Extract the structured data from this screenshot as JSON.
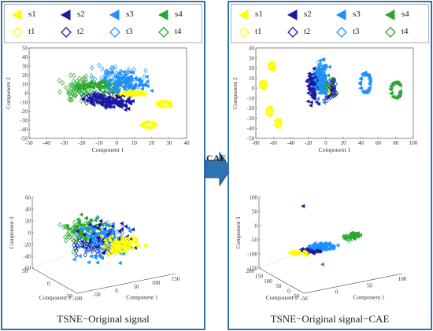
{
  "arrow_label": "CAE",
  "colors": {
    "s1": "#ffff00",
    "s2": "#1a1aa0",
    "s3": "#1e90ff",
    "s4": "#2aa830",
    "t1": "#ffff00",
    "t2": "#1a1aa0",
    "t3": "#1e90ff",
    "t4": "#2aa830",
    "frame": "#2e74b5"
  },
  "legend": {
    "markers_filled": [
      "triangle-left",
      "triangle-left",
      "triangle-left",
      "triangle-left"
    ],
    "markers_hollow": [
      "diamond",
      "diamond",
      "diamond",
      "diamond"
    ],
    "entries": [
      "s1",
      "s2",
      "s3",
      "s4",
      "t1",
      "t2",
      "t3",
      "t4"
    ]
  },
  "left": {
    "caption": "TSNE−Original signal",
    "legend": [
      "s1",
      "s2",
      "s3",
      "s4",
      "t1",
      "t2",
      "t3",
      "t4"
    ]
  },
  "right": {
    "caption": "TSNE−Original signal−CAE",
    "legend": [
      "s1",
      "s2",
      "s3",
      "s4",
      "t1",
      "t2",
      "t3",
      "t4"
    ]
  },
  "chart_data": [
    {
      "type": "scatter",
      "panel": "left-2d",
      "xlabel": "Component 1",
      "ylabel": "Component 2",
      "xlim": [
        -50,
        40
      ],
      "ylim": [
        -50,
        50
      ],
      "xticks": [
        "-50",
        "-40",
        "-30",
        "-20",
        "-10",
        "0",
        "10",
        "20",
        "30",
        "40"
      ],
      "yticks": [
        "-50",
        "-40",
        "-30",
        "-20",
        "-10",
        "0",
        "10",
        "20",
        "30",
        "40",
        "50"
      ],
      "series": [
        {
          "name": "s1",
          "clusters": [
            {
              "cx": 10,
              "cy": 0,
              "rx": 10,
              "ry": 4,
              "n": 60
            },
            {
              "cx": 27,
              "cy": -12,
              "rx": 4,
              "ry": 3,
              "n": 30,
              "ring": true
            },
            {
              "cx": 18,
              "cy": -35,
              "rx": 4,
              "ry": 3,
              "n": 30,
              "ring": true
            }
          ]
        },
        {
          "name": "s2",
          "clusters": [
            {
              "cx": -3,
              "cy": -10,
              "rx": 20,
              "ry": 10,
              "n": 90
            }
          ]
        },
        {
          "name": "s3",
          "clusters": [
            {
              "cx": 5,
              "cy": 10,
              "rx": 18,
              "ry": 18,
              "n": 90
            }
          ]
        },
        {
          "name": "s4",
          "clusters": [
            {
              "cx": -8,
              "cy": 8,
              "rx": 16,
              "ry": 10,
              "n": 70
            }
          ]
        },
        {
          "name": "t1",
          "clusters": [
            {
              "cx": 2,
              "cy": -2,
              "rx": 6,
              "ry": 4,
              "n": 20
            }
          ]
        },
        {
          "name": "t2",
          "clusters": [
            {
              "cx": -10,
              "cy": -5,
              "rx": 12,
              "ry": 10,
              "n": 60
            }
          ]
        },
        {
          "name": "t3",
          "clusters": [
            {
              "cx": 0,
              "cy": 18,
              "rx": 22,
              "ry": 16,
              "n": 70
            }
          ]
        },
        {
          "name": "t4",
          "clusters": [
            {
              "cx": -22,
              "cy": 5,
              "rx": 14,
              "ry": 20,
              "n": 80
            }
          ]
        }
      ]
    },
    {
      "type": "scatter",
      "panel": "left-3d",
      "xlabel": "Component 1",
      "ylabel": "Component 2",
      "zlabel": "Component 3",
      "zlim": [
        -60,
        60
      ],
      "zticks": [
        "-60",
        "-40",
        "-20",
        "0",
        "20",
        "40",
        "60"
      ],
      "yticks": [
        "-50",
        "0",
        "50"
      ],
      "xticks": [
        "-100",
        "-50",
        "0",
        "50",
        "100",
        "150"
      ],
      "series": [
        {
          "name": "s1",
          "clusters": [
            {
              "u": 0.62,
              "v": 0.52,
              "ru": 0.2,
              "rv": 0.12,
              "n": 80
            }
          ]
        },
        {
          "name": "s2",
          "clusters": [
            {
              "u": 0.5,
              "v": 0.45,
              "ru": 0.25,
              "rv": 0.3,
              "n": 80
            }
          ]
        },
        {
          "name": "s3",
          "clusters": [
            {
              "u": 0.5,
              "v": 0.5,
              "ru": 0.28,
              "rv": 0.32,
              "n": 90
            }
          ]
        },
        {
          "name": "s4",
          "clusters": [
            {
              "u": 0.35,
              "v": 0.35,
              "ru": 0.2,
              "rv": 0.2,
              "n": 60
            }
          ]
        },
        {
          "name": "t1",
          "clusters": [
            {
              "u": 0.55,
              "v": 0.6,
              "ru": 0.12,
              "rv": 0.08,
              "n": 20
            }
          ]
        },
        {
          "name": "t2",
          "clusters": [
            {
              "u": 0.4,
              "v": 0.55,
              "ru": 0.2,
              "rv": 0.2,
              "n": 40
            }
          ]
        },
        {
          "name": "t3",
          "clusters": [
            {
              "u": 0.45,
              "v": 0.45,
              "ru": 0.25,
              "rv": 0.28,
              "n": 40
            }
          ]
        },
        {
          "name": "t4",
          "clusters": [
            {
              "u": 0.28,
              "v": 0.4,
              "ru": 0.15,
              "rv": 0.25,
              "n": 50
            }
          ]
        }
      ]
    },
    {
      "type": "scatter",
      "panel": "right-2d",
      "xlabel": "Component 1",
      "ylabel": "Component 2",
      "xlim": [
        -80,
        100
      ],
      "ylim": [
        -50,
        40
      ],
      "xticks": [
        "-80",
        "-60",
        "-40",
        "-20",
        "0",
        "20",
        "40",
        "60",
        "80",
        "100"
      ],
      "yticks": [
        "-50",
        "-40",
        "-30",
        "-20",
        "-10",
        "0",
        "10",
        "20",
        "30",
        "40"
      ],
      "series": [
        {
          "name": "s1",
          "clusters": [
            {
              "cx": -62,
              "cy": 22,
              "rx": 3,
              "ry": 4,
              "n": 20,
              "ring": true
            },
            {
              "cx": -72,
              "cy": 3,
              "rx": 3,
              "ry": 4,
              "n": 20,
              "ring": true
            },
            {
              "cx": -65,
              "cy": -23,
              "rx": 3,
              "ry": 4,
              "n": 20,
              "ring": true
            },
            {
              "cx": -55,
              "cy": -35,
              "rx": 3,
              "ry": 4,
              "n": 20,
              "ring": true
            }
          ]
        },
        {
          "name": "s2",
          "clusters": [
            {
              "cx": -15,
              "cy": 0,
              "rx": 10,
              "ry": 22,
              "n": 80
            }
          ]
        },
        {
          "name": "s3",
          "clusters": [
            {
              "cx": -5,
              "cy": 8,
              "rx": 12,
              "ry": 25,
              "n": 80
            },
            {
              "cx": 45,
              "cy": 5,
              "rx": 6,
              "ry": 10,
              "n": 40,
              "ring": true
            }
          ]
        },
        {
          "name": "s4",
          "clusters": [
            {
              "cx": -3,
              "cy": 3,
              "rx": 6,
              "ry": 15,
              "n": 60
            },
            {
              "cx": 80,
              "cy": -2,
              "rx": 6,
              "ry": 8,
              "n": 35,
              "ring": true
            }
          ]
        },
        {
          "name": "t1",
          "clusters": [
            {
              "cx": 2,
              "cy": -2,
              "rx": 3,
              "ry": 5,
              "n": 10
            }
          ]
        },
        {
          "name": "t2",
          "clusters": [
            {
              "cx": 5,
              "cy": 2,
              "rx": 8,
              "ry": 18,
              "n": 50
            }
          ]
        },
        {
          "name": "t3",
          "clusters": [
            {
              "cx": -8,
              "cy": 15,
              "rx": 10,
              "ry": 15,
              "n": 40
            }
          ]
        },
        {
          "name": "t4",
          "clusters": [
            {
              "cx": 8,
              "cy": 0,
              "rx": 6,
              "ry": 12,
              "n": 30
            }
          ]
        }
      ]
    },
    {
      "type": "scatter",
      "panel": "right-3d",
      "xlabel": "Component 1",
      "ylabel": "Component 2",
      "zlabel": "Component 3",
      "zlim": [
        -150,
        100
      ],
      "zticks": [
        "-150",
        "-100",
        "-50",
        "0",
        "50",
        "100"
      ],
      "yticks": [
        "-50",
        "0",
        "50",
        "100",
        "150",
        "200"
      ],
      "xticks": [
        "-50",
        "0",
        "50",
        "100"
      ],
      "series": [
        {
          "name": "s1",
          "clusters": [
            {
              "u": 0.22,
              "v": 0.62,
              "ru": 0.06,
              "rv": 0.04,
              "n": 30
            }
          ]
        },
        {
          "name": "s2",
          "clusters": [
            {
              "u": 0.35,
              "v": 0.6,
              "ru": 0.1,
              "rv": 0.05,
              "n": 40
            },
            {
              "u": 0.28,
              "v": 0.08,
              "ru": 0.005,
              "rv": 0.005,
              "n": 1
            }
          ]
        },
        {
          "name": "s3",
          "clusters": [
            {
              "u": 0.42,
              "v": 0.55,
              "ru": 0.14,
              "rv": 0.06,
              "n": 60
            }
          ]
        },
        {
          "name": "s4",
          "clusters": [
            {
              "u": 0.65,
              "v": 0.42,
              "ru": 0.06,
              "rv": 0.05,
              "n": 40
            },
            {
              "u": 0.42,
              "v": 0.76,
              "ru": 0.005,
              "rv": 0.005,
              "n": 1
            }
          ]
        },
        {
          "name": "t1",
          "clusters": [
            {
              "u": 0.3,
              "v": 0.63,
              "ru": 0.04,
              "rv": 0.03,
              "n": 10
            }
          ]
        },
        {
          "name": "t2",
          "clusters": [
            {
              "u": 0.3,
              "v": 0.6,
              "ru": 0.05,
              "rv": 0.03,
              "n": 20
            }
          ]
        },
        {
          "name": "t3",
          "clusters": [
            {
              "u": 0.38,
              "v": 0.57,
              "ru": 0.08,
              "rv": 0.04,
              "n": 15
            }
          ]
        },
        {
          "name": "t4",
          "clusters": [
            {
              "u": 0.6,
              "v": 0.45,
              "ru": 0.05,
              "rv": 0.04,
              "n": 15
            }
          ]
        }
      ]
    }
  ]
}
